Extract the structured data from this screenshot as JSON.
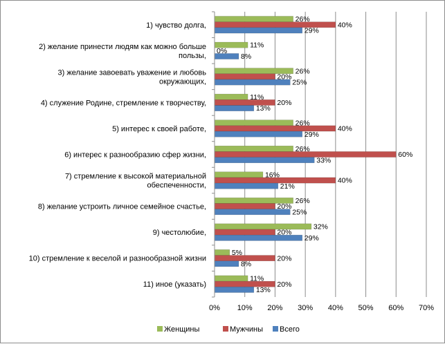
{
  "chart_data": {
    "type": "bar",
    "orientation": "horizontal",
    "categories": [
      [
        "1) чувство долга,"
      ],
      [
        "2) желание принести людям как можно больше",
        "пользы,"
      ],
      [
        "3) желание завоевать уважение и любовь",
        "окружающих,"
      ],
      [
        "4) служение Родине, стремление к творчеству,"
      ],
      [
        "5) интерес к своей работе,"
      ],
      [
        "6) интерес к разнообразию сфер жизни,"
      ],
      [
        "7) стремление к высокой материальной",
        "обеспеченности,"
      ],
      [
        "8) желание устроить личное семейное счастье,"
      ],
      [
        "9) честолюбие,"
      ],
      [
        "10) стремление к веселой и разнообразной жизни"
      ],
      [
        "11) иное (указать)"
      ]
    ],
    "series": [
      {
        "name": "Женщины",
        "color": "#9bbb59",
        "values": [
          26,
          11,
          26,
          11,
          26,
          26,
          16,
          26,
          32,
          5,
          11
        ]
      },
      {
        "name": "Мужчины",
        "color": "#c0504d",
        "values": [
          40,
          0,
          20,
          20,
          40,
          60,
          40,
          20,
          20,
          20,
          20
        ]
      },
      {
        "name": "Всего",
        "color": "#4f81bd",
        "values": [
          29,
          8,
          25,
          13,
          29,
          33,
          21,
          25,
          29,
          8,
          13
        ]
      }
    ],
    "x_ticks": [
      "0%",
      "10%",
      "20%",
      "30%",
      "40%",
      "50%",
      "60%",
      "70%"
    ],
    "xlim": [
      0,
      70
    ],
    "value_suffix": "%",
    "grid": true,
    "legend_position": "bottom"
  }
}
